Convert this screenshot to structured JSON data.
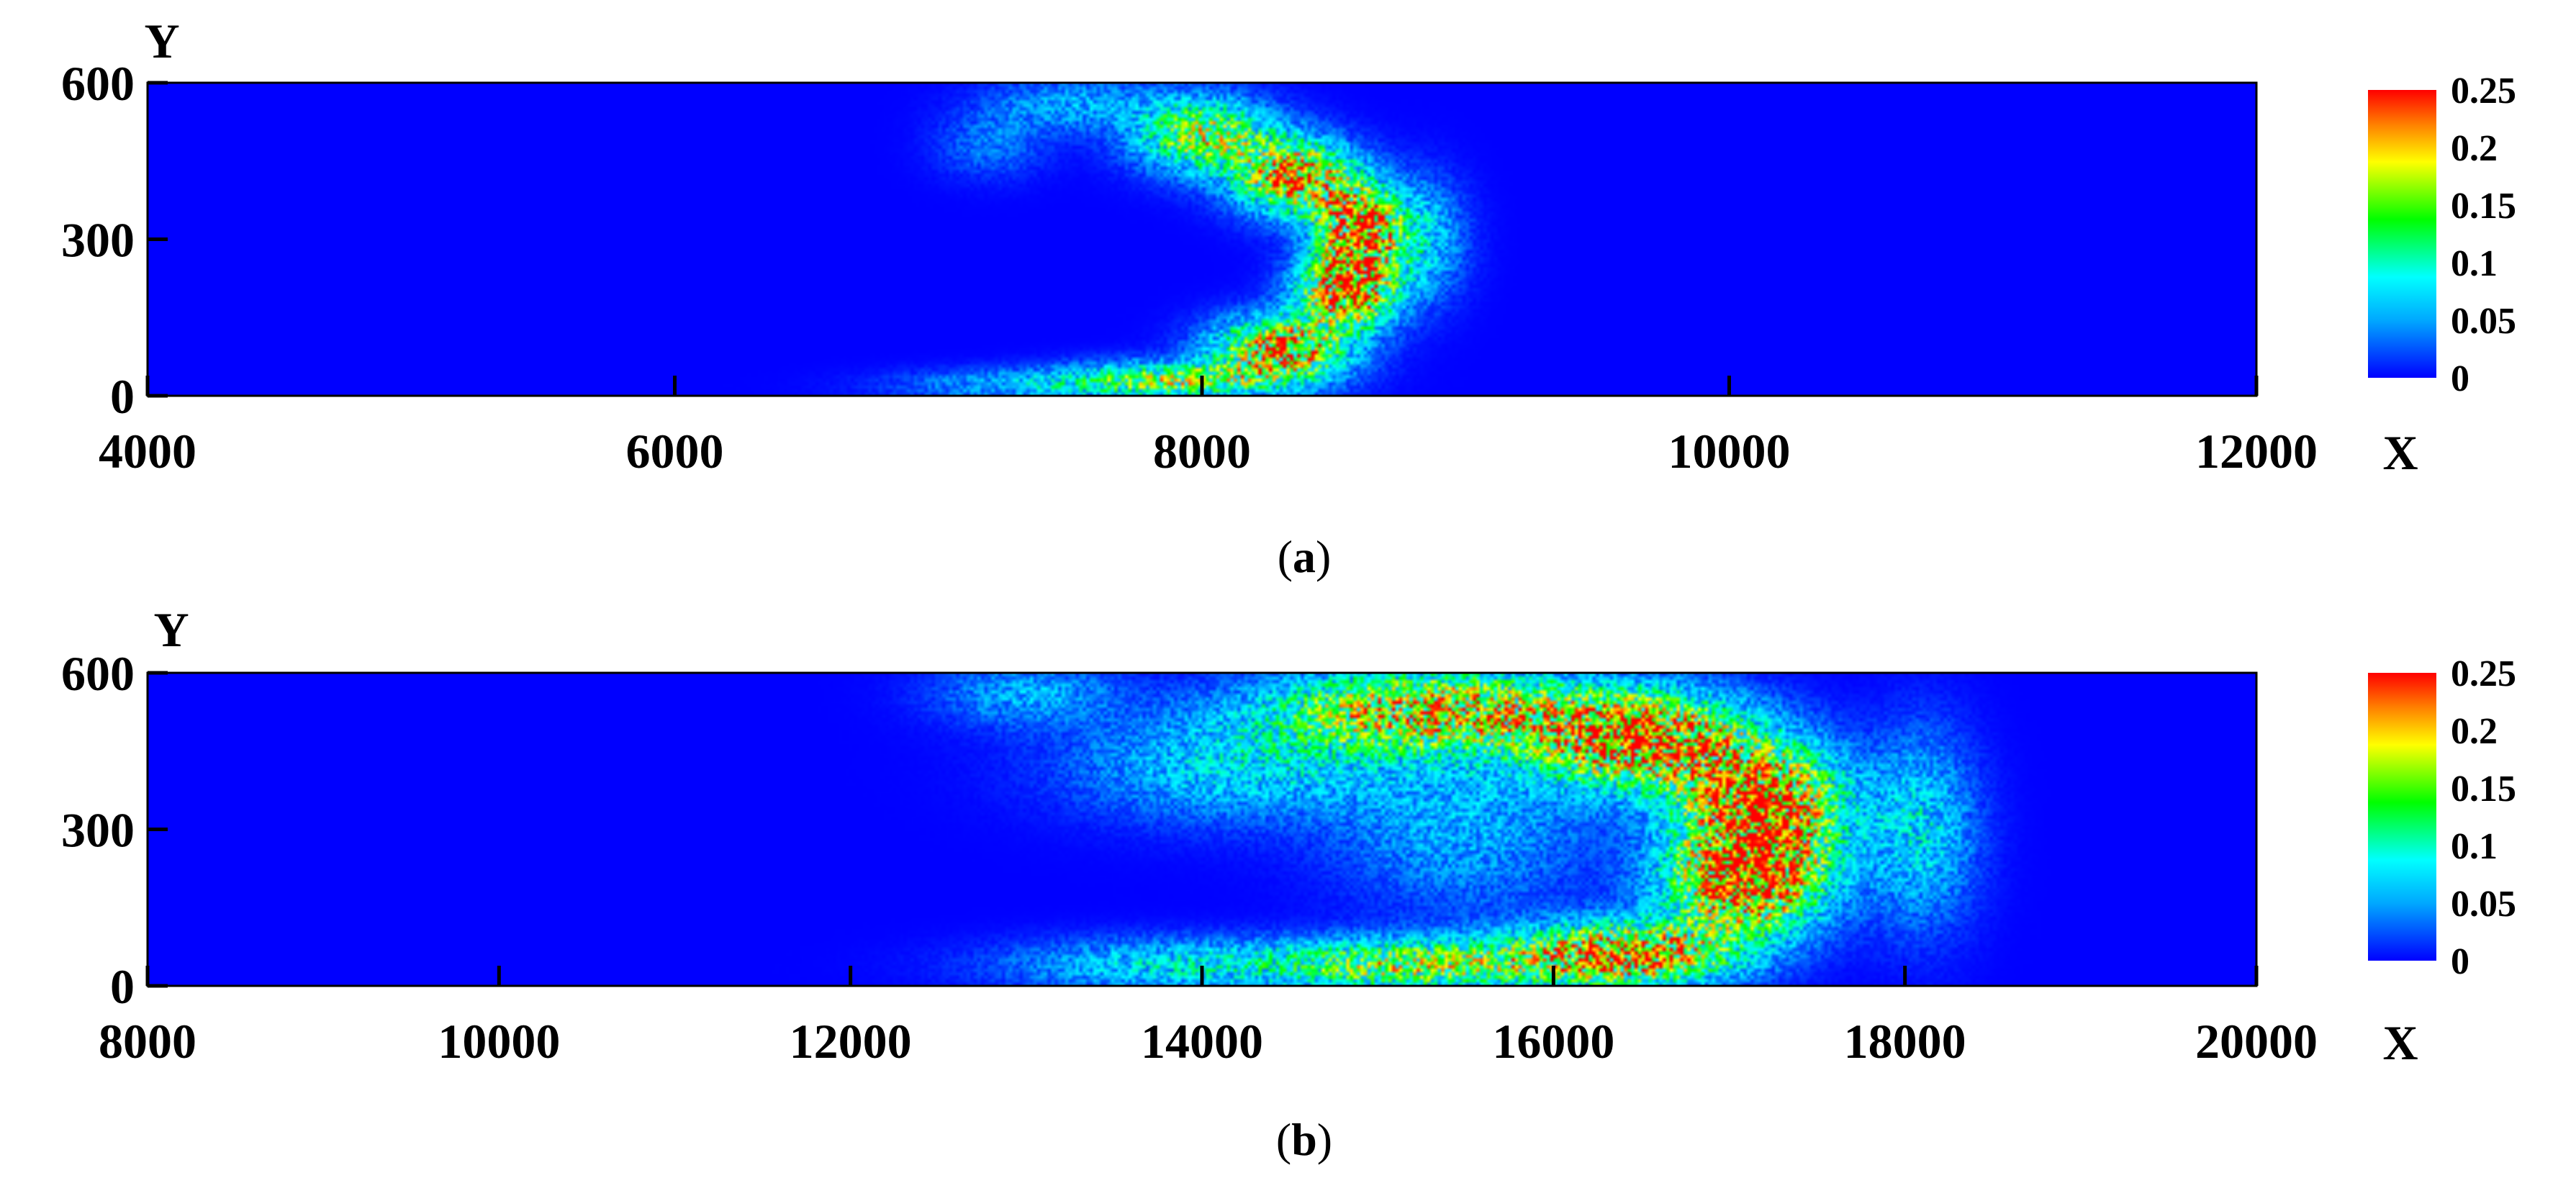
{
  "colormap": [
    "#0000ff",
    "#00a8ff",
    "#00ffff",
    "#00ff00",
    "#ffff00",
    "#ff8000",
    "#ff0000"
  ],
  "panels": [
    {
      "caption_open": "(",
      "caption_letter": "a",
      "caption_close": ")",
      "chart_data": {
        "type": "heatmap",
        "xlabel": "X",
        "ylabel": "Y",
        "xlim": [
          4000,
          12000
        ],
        "ylim": [
          0,
          600
        ],
        "x_ticks": [
          4000,
          6000,
          8000,
          10000,
          12000
        ],
        "y_ticks": [
          0,
          300,
          600
        ],
        "colorbar": {
          "min": 0,
          "max": 0.25,
          "ticks": [
            "0",
            "0.05",
            "0.1",
            "0.15",
            "0.2",
            "0.25"
          ]
        },
        "background_value": 0,
        "blobs": [
          {
            "x": 8000,
            "y": 500,
            "sx": 250,
            "sy": 70,
            "v": 0.17
          },
          {
            "x": 8350,
            "y": 420,
            "sx": 220,
            "sy": 70,
            "v": 0.22
          },
          {
            "x": 8600,
            "y": 320,
            "sx": 160,
            "sy": 80,
            "v": 0.25
          },
          {
            "x": 8550,
            "y": 200,
            "sx": 180,
            "sy": 70,
            "v": 0.24
          },
          {
            "x": 8300,
            "y": 90,
            "sx": 250,
            "sy": 60,
            "v": 0.22
          },
          {
            "x": 7900,
            "y": 30,
            "sx": 400,
            "sy": 35,
            "v": 0.15
          },
          {
            "x": 7300,
            "y": 20,
            "sx": 450,
            "sy": 30,
            "v": 0.06
          },
          {
            "x": 8850,
            "y": 300,
            "sx": 150,
            "sy": 110,
            "v": 0.07
          },
          {
            "x": 7500,
            "y": 560,
            "sx": 300,
            "sy": 50,
            "v": 0.06
          },
          {
            "x": 7200,
            "y": 480,
            "sx": 200,
            "sy": 60,
            "v": 0.04
          }
        ]
      }
    },
    {
      "caption_open": "(",
      "caption_letter": "b",
      "caption_close": ")",
      "chart_data": {
        "type": "heatmap",
        "xlabel": "X",
        "ylabel": "Y",
        "xlim": [
          8000,
          20000
        ],
        "ylim": [
          0,
          600
        ],
        "x_ticks": [
          8000,
          10000,
          12000,
          14000,
          16000,
          18000,
          20000
        ],
        "y_ticks": [
          0,
          300,
          600
        ],
        "colorbar": {
          "min": 0,
          "max": 0.25,
          "ticks": [
            "0",
            "0.05",
            "0.1",
            "0.15",
            "0.2",
            "0.25"
          ]
        },
        "background_value": 0,
        "blobs": [
          {
            "x": 15300,
            "y": 530,
            "sx": 900,
            "sy": 80,
            "v": 0.2
          },
          {
            "x": 16500,
            "y": 470,
            "sx": 600,
            "sy": 90,
            "v": 0.24
          },
          {
            "x": 17200,
            "y": 350,
            "sx": 450,
            "sy": 110,
            "v": 0.25
          },
          {
            "x": 17100,
            "y": 200,
            "sx": 450,
            "sy": 100,
            "v": 0.25
          },
          {
            "x": 16400,
            "y": 60,
            "sx": 600,
            "sy": 60,
            "v": 0.24
          },
          {
            "x": 15200,
            "y": 40,
            "sx": 800,
            "sy": 50,
            "v": 0.16
          },
          {
            "x": 13800,
            "y": 40,
            "sx": 900,
            "sy": 50,
            "v": 0.08
          },
          {
            "x": 14200,
            "y": 420,
            "sx": 900,
            "sy": 100,
            "v": 0.08
          },
          {
            "x": 15500,
            "y": 300,
            "sx": 700,
            "sy": 150,
            "v": 0.06
          },
          {
            "x": 18100,
            "y": 300,
            "sx": 300,
            "sy": 180,
            "v": 0.08
          },
          {
            "x": 13000,
            "y": 560,
            "sx": 500,
            "sy": 60,
            "v": 0.06
          }
        ]
      }
    }
  ]
}
